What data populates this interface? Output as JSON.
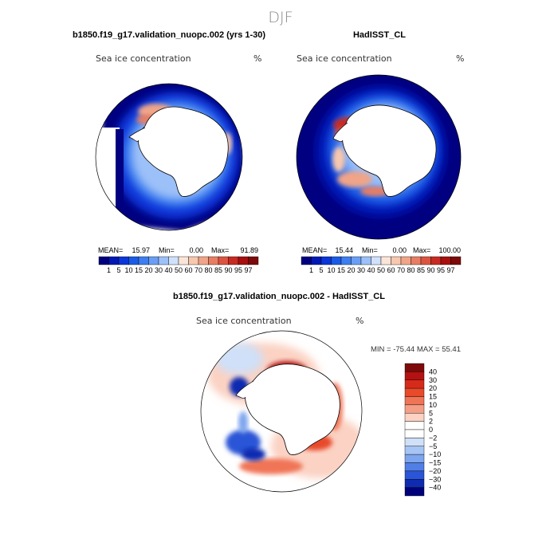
{
  "page_title": "DJF",
  "chart_data": [
    {
      "type": "heatmap",
      "projection": "south-polar-stereographic",
      "title": "b1850.f19_g17.validation_nuopc.002 (yrs 1-30)",
      "field_label": "Sea ice concentration",
      "units": "%",
      "stats": {
        "mean_label": "MEAN=",
        "mean": "15.97",
        "min_label": "Min=",
        "min": "0.00",
        "max_label": "Max=",
        "max": "91.89"
      },
      "colorbar_levels": [
        "1",
        "5",
        "10",
        "15",
        "20",
        "30",
        "40",
        "50",
        "60",
        "70",
        "80",
        "85",
        "90",
        "95",
        "97"
      ]
    },
    {
      "type": "heatmap",
      "projection": "south-polar-stereographic",
      "title": "HadISST_CL",
      "field_label": "Sea ice concentration",
      "units": "%",
      "stats": {
        "mean_label": "MEAN=",
        "mean": "15.44",
        "min_label": "Min=",
        "min": "0.00",
        "max_label": "Max=",
        "max": "100.00"
      },
      "colorbar_levels": [
        "1",
        "5",
        "10",
        "15",
        "20",
        "30",
        "40",
        "50",
        "60",
        "70",
        "80",
        "85",
        "90",
        "95",
        "97"
      ]
    },
    {
      "type": "heatmap",
      "projection": "south-polar-stereographic",
      "title": "b1850.f19_g17.validation_nuopc.002 - HadISST_CL",
      "field_label": "Sea ice concentration",
      "units": "%",
      "stats_label": "MIN = -75.44 MAX = 55.41",
      "colorbar_levels": [
        "40",
        "30",
        "20",
        "15",
        "10",
        "5",
        "2",
        "0",
        "-2",
        "-5",
        "-10",
        "-15",
        "-20",
        "-30",
        "-40"
      ]
    }
  ],
  "colors": {
    "abs_scale": [
      "#000080",
      "#0018b4",
      "#0b36d8",
      "#1a5be6",
      "#3d7ef0",
      "#6a9ef5",
      "#9cc0f8",
      "#d0e2fb",
      "#fbe5d8",
      "#f7c7af",
      "#f0a488",
      "#e87d62",
      "#dc5440",
      "#c82a22",
      "#a80f0f",
      "#7d0a0a"
    ],
    "diff_scale": [
      "#7d0a0a",
      "#b41212",
      "#d62b1a",
      "#e84a2a",
      "#f07456",
      "#f59e86",
      "#fbd2c3",
      "#ffffff",
      "#ffffff",
      "#cfe0f8",
      "#a6c4f4",
      "#7ea6ee",
      "#507fe6",
      "#2a55d6",
      "#0f2cb0",
      "#00007a"
    ]
  }
}
